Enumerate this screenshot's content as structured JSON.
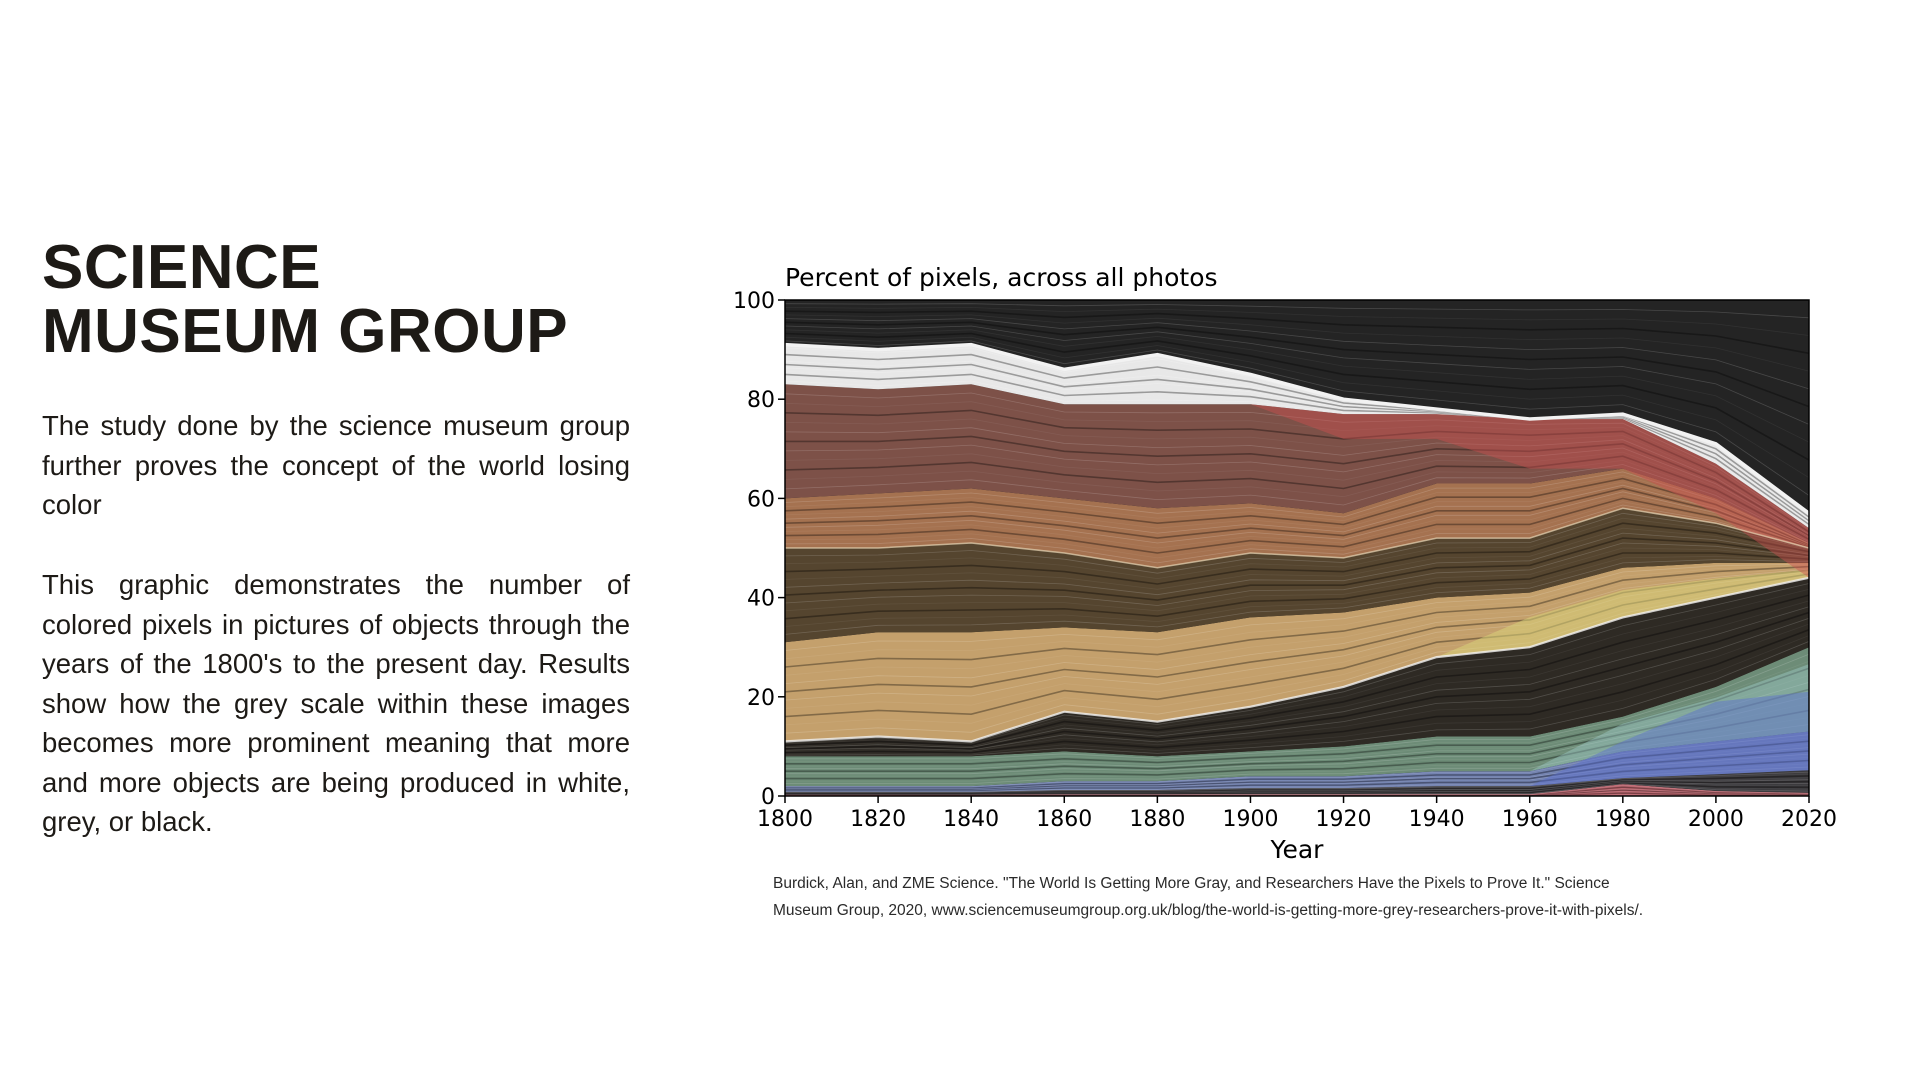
{
  "heading": {
    "line1": "SCIENCE",
    "line2": "MUSEUM GROUP"
  },
  "paragraphs": [
    "The study done by the science museum group further proves the concept of the world losing color",
    "This graphic demonstrates the number of colored pixels in pictures of objects through the years of the 1800's to the present day. Results show how the grey scale within these images becomes more prominent meaning that more and more objects are being produced in white, grey, or black."
  ],
  "citation": {
    "line1": "Burdick, Alan, and ZME Science. \"The World Is Getting More Gray, and Researchers Have the Pixels to Prove It.\" Science",
    "line2": "Museum Group, 2020, www.sciencemuseumgroup.org.uk/blog/the-world-is-getting-more-grey-researchers-prove-it-with-pixels/."
  },
  "chart_data": {
    "type": "area",
    "stacked": true,
    "title": "Percent of pixels, across all photos",
    "xlabel": "Year",
    "ylabel": "",
    "xlim": [
      1800,
      2020
    ],
    "ylim": [
      0,
      100
    ],
    "x": [
      1800,
      1820,
      1840,
      1860,
      1880,
      1900,
      1920,
      1940,
      1960,
      1980,
      2000,
      2020
    ],
    "xticks": [
      "1800",
      "1820",
      "1840",
      "1860",
      "1880",
      "1900",
      "1920",
      "1940",
      "1960",
      "1980",
      "2000",
      "2020"
    ],
    "yticks": [
      "0",
      "20",
      "40",
      "60",
      "80",
      "100"
    ],
    "boundaries": [
      {
        "name": "blue/purple top",
        "values": [
          2,
          2,
          2,
          3,
          3,
          4,
          4,
          5,
          5,
          9,
          11,
          13
        ]
      },
      {
        "name": "green top",
        "values": [
          8,
          8,
          8,
          9,
          8,
          9,
          10,
          12,
          12,
          16,
          22,
          30
        ]
      },
      {
        "name": "dark top",
        "values": [
          11,
          12,
          11,
          17,
          15,
          18,
          22,
          28,
          30,
          36,
          40,
          44
        ]
      },
      {
        "name": "tan top",
        "values": [
          31,
          33,
          33,
          34,
          33,
          36,
          37,
          40,
          41,
          46,
          47,
          47
        ]
      },
      {
        "name": "dark brown top",
        "values": [
          50,
          50,
          51,
          49,
          46,
          49,
          48,
          52,
          52,
          58,
          55,
          50
        ]
      },
      {
        "name": "orange-brown top",
        "values": [
          60,
          61,
          62,
          60,
          58,
          59,
          57,
          63,
          63,
          66,
          60,
          51
        ]
      },
      {
        "name": "red-brown top",
        "values": [
          83,
          82,
          83,
          79,
          79,
          79,
          77,
          77,
          76,
          76,
          67,
          54
        ]
      },
      {
        "name": "white line",
        "values": [
          91,
          90,
          91,
          86,
          89,
          85,
          80,
          78,
          76,
          77,
          71,
          57
        ]
      }
    ],
    "series": [
      {
        "name": "red/pink",
        "color": "#b8606a"
      },
      {
        "name": "dark base",
        "color": "#3c3b3e"
      },
      {
        "name": "blue/purple",
        "color": "#6f7fae"
      },
      {
        "name": "green",
        "color": "#6d8c77"
      },
      {
        "name": "dark",
        "color": "#2e2a24"
      },
      {
        "name": "tan",
        "color": "#c4a06c"
      },
      {
        "name": "dark brown",
        "color": "#55452f"
      },
      {
        "name": "orange-brown",
        "color": "#a57250"
      },
      {
        "name": "red-brown",
        "color": "#7d5148"
      },
      {
        "name": "white/grey",
        "color": "#e8e8e8"
      },
      {
        "name": "black/grey",
        "color": "#242424"
      }
    ],
    "highlights": {
      "white_line_color": "#f2f2f2",
      "yellow_color": "#d8d27a",
      "red_band_color": "#cc4f4f",
      "cyan_color": "#a6d3d2",
      "blue_color": "#5c6fd0"
    }
  }
}
